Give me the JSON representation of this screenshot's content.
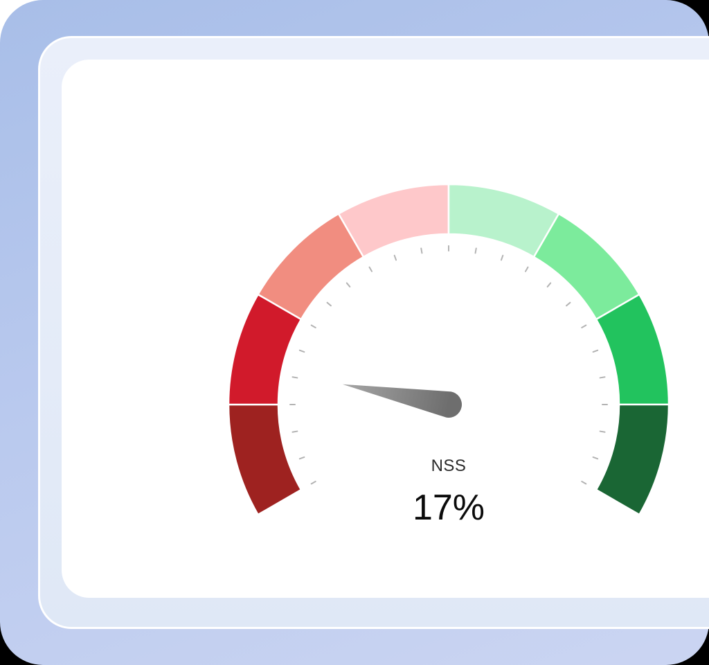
{
  "theme": {
    "backdrop_top_left": "#ffffff",
    "backdrop_other": "#000000",
    "frame_gradient_top": "#a8bee8",
    "frame_gradient_mid": "#b9c9ee",
    "frame_gradient_bottom": "#cbd5f2",
    "panel_fill_top": "#eaeffa",
    "panel_fill_bottom": "#dfe8f6",
    "panel_border": "#ffffff",
    "card_fill": "#ffffff"
  },
  "chart_data": {
    "type": "gauge",
    "title": "NSS",
    "value": 17,
    "unit": "%",
    "display_value": "17%",
    "min": 0,
    "max": 100,
    "start_angle_deg": 210,
    "end_angle_deg": -30,
    "tick_count": 25,
    "tick_color": "#b3b3b3",
    "segment_divider_color": "#ffffff",
    "needle_gradient": [
      "#a6a6a6",
      "#6e6e6e"
    ],
    "segments": [
      {
        "from": 0,
        "to": 12.5,
        "color": "#9e2220",
        "label": "segment-1-dark-red"
      },
      {
        "from": 12.5,
        "to": 25,
        "color": "#d11a2b",
        "label": "segment-2-red"
      },
      {
        "from": 25,
        "to": 37.5,
        "color": "#f18d80",
        "label": "segment-3-salmon"
      },
      {
        "from": 37.5,
        "to": 50,
        "color": "#fec8ca",
        "label": "segment-4-pink"
      },
      {
        "from": 50,
        "to": 62.5,
        "color": "#b8f2cc",
        "label": "segment-5-mint"
      },
      {
        "from": 62.5,
        "to": 75,
        "color": "#7ceb9c",
        "label": "segment-6-light-green"
      },
      {
        "from": 75,
        "to": 87.5,
        "color": "#22c35e",
        "label": "segment-7-green"
      },
      {
        "from": 87.5,
        "to": 100,
        "color": "#1a6634",
        "label": "segment-8-dark-green"
      }
    ]
  }
}
